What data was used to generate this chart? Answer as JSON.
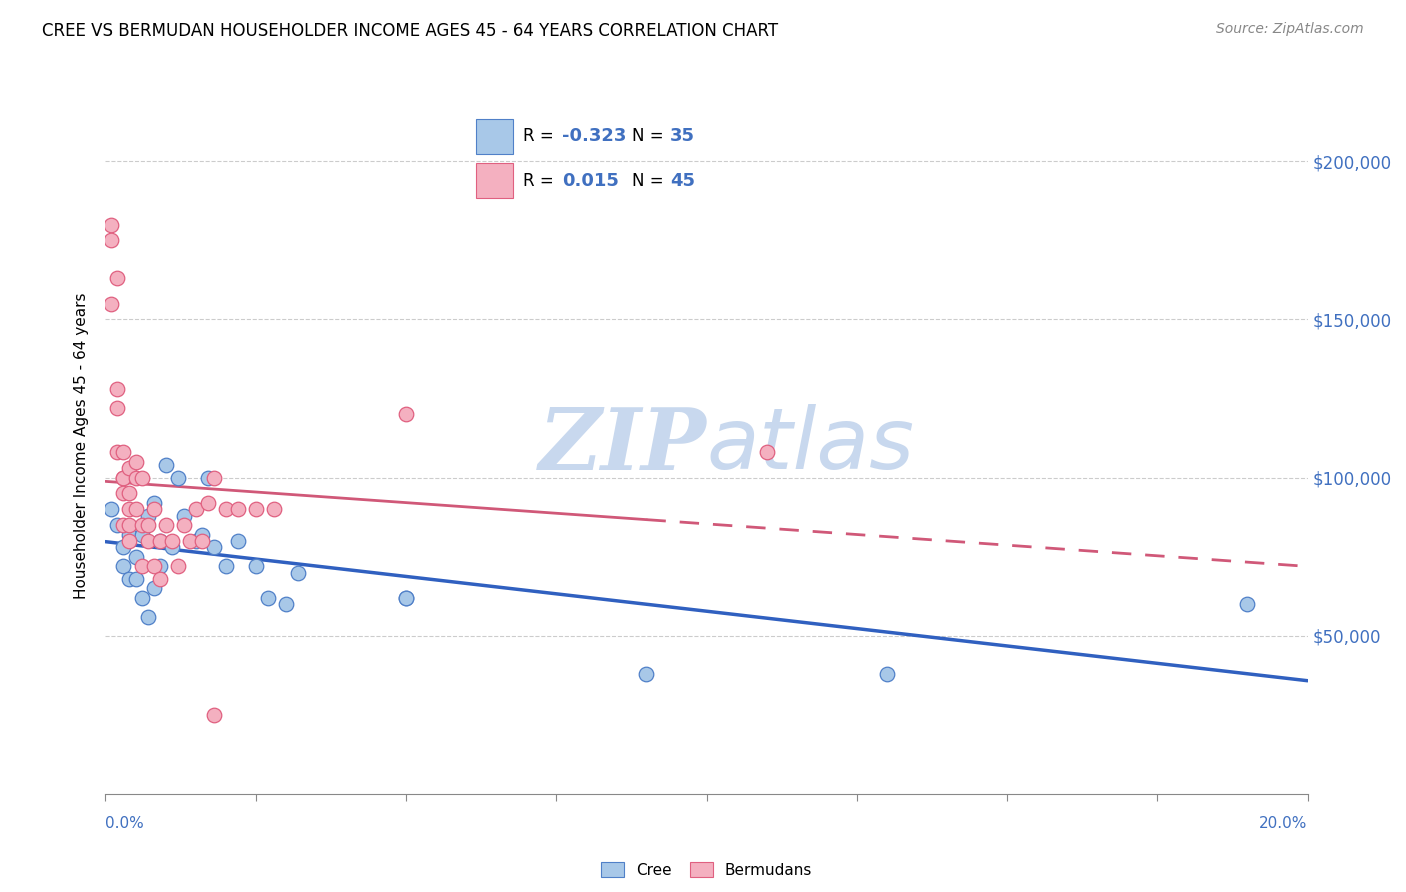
{
  "title": "CREE VS BERMUDAN HOUSEHOLDER INCOME AGES 45 - 64 YEARS CORRELATION CHART",
  "source": "Source: ZipAtlas.com",
  "ylabel": "Householder Income Ages 45 - 64 years",
  "ytick_labels": [
    "$50,000",
    "$100,000",
    "$150,000",
    "$200,000"
  ],
  "ytick_values": [
    50000,
    100000,
    150000,
    200000
  ],
  "xlim": [
    0.0,
    0.2
  ],
  "ylim": [
    0,
    220000
  ],
  "cree_R": "-0.323",
  "cree_N": "35",
  "bermuda_R": "0.015",
  "bermuda_N": "45",
  "cree_color": "#A8C8E8",
  "bermuda_color": "#F4B0C0",
  "cree_edge_color": "#5080C8",
  "bermuda_edge_color": "#E06080",
  "cree_line_color": "#3060C0",
  "bermuda_line_color": "#D05878",
  "watermark_color": "#C8D8EE",
  "blue_label_color": "#4070C0",
  "legend_text_color": "#4070C0",
  "cree_x": [
    0.001,
    0.002,
    0.003,
    0.003,
    0.004,
    0.004,
    0.005,
    0.005,
    0.006,
    0.006,
    0.007,
    0.007,
    0.008,
    0.008,
    0.009,
    0.009,
    0.01,
    0.011,
    0.012,
    0.013,
    0.015,
    0.016,
    0.017,
    0.018,
    0.02,
    0.022,
    0.025,
    0.027,
    0.03,
    0.032,
    0.05,
    0.05,
    0.09,
    0.13,
    0.19
  ],
  "cree_y": [
    90000,
    85000,
    78000,
    72000,
    82000,
    68000,
    75000,
    68000,
    82000,
    62000,
    88000,
    56000,
    92000,
    65000,
    80000,
    72000,
    104000,
    78000,
    100000,
    88000,
    80000,
    82000,
    100000,
    78000,
    72000,
    80000,
    72000,
    62000,
    60000,
    70000,
    62000,
    62000,
    38000,
    38000,
    60000
  ],
  "bermuda_x": [
    0.001,
    0.001,
    0.001,
    0.002,
    0.002,
    0.002,
    0.002,
    0.003,
    0.003,
    0.003,
    0.003,
    0.003,
    0.004,
    0.004,
    0.004,
    0.004,
    0.004,
    0.005,
    0.005,
    0.005,
    0.006,
    0.006,
    0.006,
    0.007,
    0.007,
    0.008,
    0.008,
    0.009,
    0.009,
    0.01,
    0.011,
    0.012,
    0.013,
    0.014,
    0.015,
    0.016,
    0.017,
    0.018,
    0.018,
    0.02,
    0.022,
    0.025,
    0.028,
    0.05,
    0.11
  ],
  "bermuda_y": [
    180000,
    175000,
    155000,
    163000,
    128000,
    122000,
    108000,
    108000,
    100000,
    100000,
    95000,
    85000,
    103000,
    95000,
    90000,
    85000,
    80000,
    105000,
    100000,
    90000,
    100000,
    85000,
    72000,
    85000,
    80000,
    90000,
    72000,
    80000,
    68000,
    85000,
    80000,
    72000,
    85000,
    80000,
    90000,
    80000,
    92000,
    25000,
    100000,
    90000,
    90000,
    90000,
    90000,
    120000,
    108000
  ],
  "bermuda_solid_cutoff": 0.09
}
